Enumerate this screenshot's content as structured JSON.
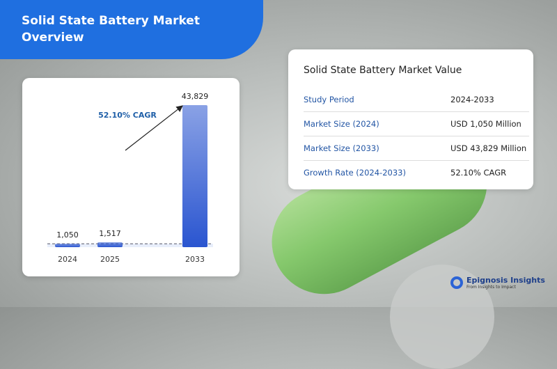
{
  "header": {
    "title": "Solid State Battery Market Overview"
  },
  "chart_data": {
    "type": "bar",
    "categories": [
      "2024",
      "2025",
      "2033"
    ],
    "values": [
      1050,
      1517,
      43829
    ],
    "value_labels": [
      "1,050",
      "1,517",
      "43,829"
    ],
    "color": "#2a55d0",
    "annotation": "52.10% CAGR"
  },
  "table": {
    "title": "Solid State Battery Market Value",
    "rows": [
      [
        "Study Period",
        "2024-2033"
      ],
      [
        "Market Size (2024)",
        "USD 1,050 Million"
      ],
      [
        "Market Size (2033)",
        "USD 43,829 Million"
      ],
      [
        "Growth Rate (2024-2033)",
        "52.10% CAGR"
      ]
    ]
  },
  "logo": {
    "name": "Epignosis Insights",
    "tagline": "From Insights to Impact"
  }
}
